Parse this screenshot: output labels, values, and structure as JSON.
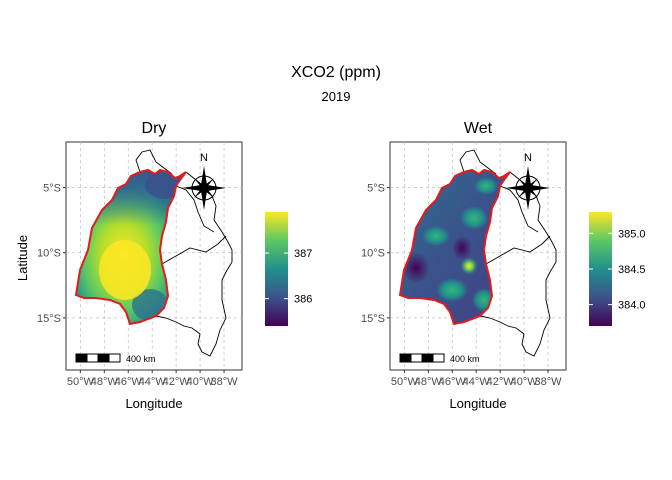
{
  "figure": {
    "title": "XCO2 (ppm)",
    "subtitle": "2019"
  },
  "panels": [
    {
      "id": "dry",
      "title": "Dry",
      "xlabel": "Longitude",
      "ylabel": "Latitude",
      "x_ticks": [
        "50°W",
        "48°W",
        "46°W",
        "44°W",
        "42°W",
        "40°W",
        "38°W"
      ],
      "y_ticks": [
        "5°S",
        "10°S",
        "15°S"
      ],
      "legend_ticks": [
        "387",
        "386"
      ],
      "legend_values": [
        387,
        386
      ],
      "legend_range": [
        385.4,
        387.9
      ],
      "scale_bar": "400 km",
      "north_label": "N",
      "hotspot": "center-west yellow"
    },
    {
      "id": "wet",
      "title": "Wet",
      "xlabel": "Longitude",
      "ylabel": "",
      "x_ticks": [
        "50°W",
        "48°W",
        "46°W",
        "44°W",
        "42°W",
        "40°W",
        "38°W"
      ],
      "y_ticks": [
        "5°S",
        "10°S",
        "15°S"
      ],
      "legend_ticks": [
        "385.0",
        "384.5",
        "384.0"
      ],
      "legend_values": [
        385.0,
        384.5,
        384.0
      ],
      "legend_range": [
        383.7,
        385.3
      ],
      "scale_bar": "400 km",
      "north_label": "N",
      "hotspot": "small yellow spot near 43.5°W 10.5°S"
    }
  ],
  "colors": {
    "viridis": [
      "#440154",
      "#3b528b",
      "#21908c",
      "#5dc863",
      "#fde725"
    ],
    "boundary": "#e41a1c",
    "states": "#000000",
    "grid": "#bfbfbf"
  }
}
